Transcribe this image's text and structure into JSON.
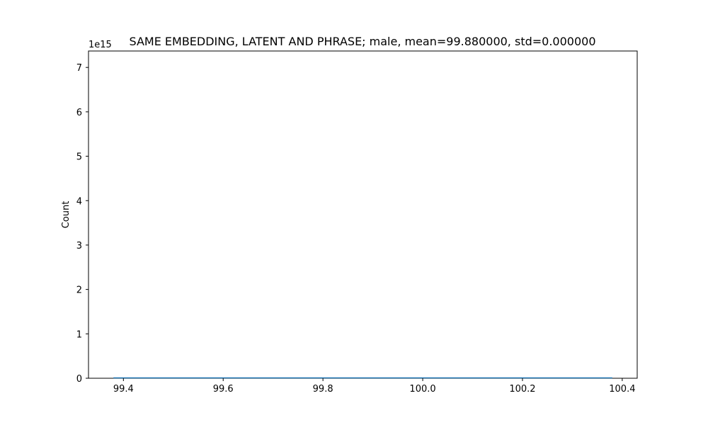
{
  "chart_data": {
    "type": "line",
    "title": "SAME EMBEDDING, LATENT AND PHRASE; male, mean=99.880000, std=0.000000",
    "xlabel": "",
    "ylabel": "Count",
    "y_offset_text": "1e15",
    "xlim": [
      99.33,
      100.43
    ],
    "ylim": [
      0,
      7.37
    ],
    "x_ticks": [
      99.4,
      99.6,
      99.8,
      100.0,
      100.2,
      100.4
    ],
    "x_tick_labels": [
      "99.4",
      "99.6",
      "99.8",
      "100.0",
      "100.2",
      "100.4"
    ],
    "y_ticks": [
      0,
      1,
      2,
      3,
      4,
      5,
      6,
      7
    ],
    "y_tick_labels": [
      "0",
      "1",
      "2",
      "3",
      "4",
      "5",
      "6",
      "7"
    ],
    "series": [
      {
        "x": [
          99.38,
          100.38
        ],
        "values": [
          0,
          0
        ],
        "color": "#1f77b4"
      }
    ],
    "grid": false,
    "legend": "none"
  }
}
